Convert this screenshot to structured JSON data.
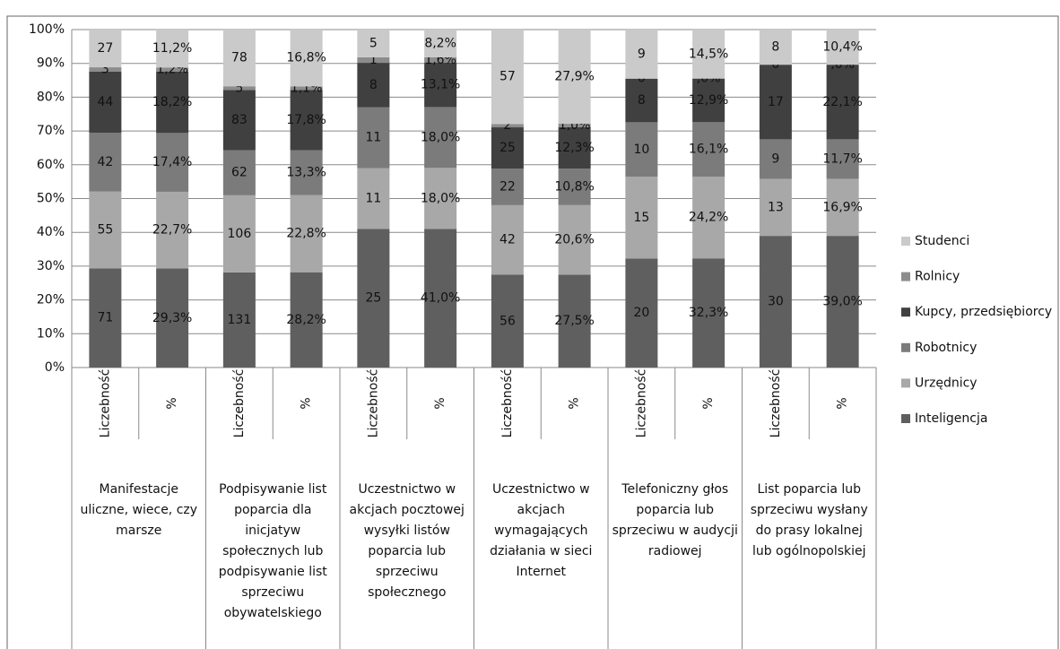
{
  "chart_data": {
    "type": "stacked-percent-bar",
    "categories": [
      "Liczebność",
      "%",
      "Liczebność",
      "%",
      "Liczebność",
      "%",
      "Liczebność",
      "%",
      "Liczebność",
      "%",
      "Liczebność",
      "%"
    ],
    "groups": [
      "Manifestacje uliczne, wiece, czy marsze",
      "Podpisywanie list poparcia dla inicjatyw społecznych lub podpisywanie list sprzeciwu obywatelskiego",
      "Uczestnictwo w akcjach pocztowej wysyłki listów poparcia lub sprzeciwu społecznego",
      "Uczestnictwo w akcjach wymagających działania w sieci Internet",
      "Telefoniczny głos poparcia lub sprzeciwu w audycji radiowej",
      "List poparcia lub sprzeciwu wysłany do prasy lokalnej lub ogólnopolskiej"
    ],
    "ylim": [
      0,
      100
    ],
    "yticks": [
      {
        "value": 0,
        "label": "0%"
      },
      {
        "value": 10,
        "label": "10%"
      },
      {
        "value": 20,
        "label": "20%"
      },
      {
        "value": 30,
        "label": "30%"
      },
      {
        "value": 40,
        "label": "40%"
      },
      {
        "value": 50,
        "label": "50%"
      },
      {
        "value": 60,
        "label": "60%"
      },
      {
        "value": 70,
        "label": "70%"
      },
      {
        "value": 80,
        "label": "80%"
      },
      {
        "value": 90,
        "label": "90%"
      },
      {
        "value": 100,
        "label": "100%"
      }
    ],
    "grid": true,
    "legend": "right",
    "series": [
      {
        "name": "Inteligencja",
        "color": "#5f5f5f",
        "values": [
          71,
          29.3,
          131,
          28.2,
          25,
          41.0,
          56,
          27.5,
          20,
          32.3,
          30,
          39.0
        ],
        "value_labels": [
          "71",
          "29,3%",
          "131",
          "28,2%",
          "25",
          "41,0%",
          "56",
          "27,5%",
          "20",
          "32,3%",
          "30",
          "39,0%"
        ]
      },
      {
        "name": "Urzędnicy",
        "color": "#a8a8a8",
        "values": [
          55,
          22.7,
          106,
          22.8,
          11,
          18.0,
          42,
          20.6,
          15,
          24.2,
          13,
          16.9
        ],
        "value_labels": [
          "55",
          "22,7%",
          "106",
          "22,8%",
          "11",
          "18,0%",
          "42",
          "20,6%",
          "15",
          "24,2%",
          "13",
          "16,9%"
        ]
      },
      {
        "name": "Robotnicy",
        "color": "#7b7b7b",
        "values": [
          42,
          17.4,
          62,
          13.3,
          11,
          18.0,
          22,
          10.8,
          10,
          16.1,
          9,
          11.7
        ],
        "value_labels": [
          "42",
          "17,4%",
          "62",
          "13,3%",
          "11",
          "18,0%",
          "22",
          "10,8%",
          "10",
          "16,1%",
          "9",
          "11,7%"
        ]
      },
      {
        "name": "Kupcy, przedsiębiorcy",
        "color": "#404040",
        "values": [
          44,
          18.2,
          83,
          17.8,
          8,
          13.1,
          25,
          12.3,
          8,
          12.9,
          17,
          22.1
        ],
        "value_labels": [
          "44",
          "18,2%",
          "83",
          "17,8%",
          "8",
          "13,1%",
          "25",
          "12,3%",
          "8",
          "12,9%",
          "17",
          "22,1%"
        ]
      },
      {
        "name": "Rolnicy",
        "color": "#8c8c8c",
        "values": [
          3,
          1.2,
          5,
          1.1,
          1,
          1.6,
          2,
          1.0,
          0,
          0,
          0,
          0
        ],
        "value_labels": [
          "3",
          "1,2%",
          "5",
          "1,1%",
          "1",
          "1,6%",
          "2",
          "1,0%",
          "0",
          ",0%",
          "0",
          ",0%"
        ]
      },
      {
        "name": "Studenci",
        "color": "#cacaca",
        "values": [
          27,
          11.2,
          78,
          16.8,
          5,
          8.2,
          57,
          27.9,
          9,
          14.5,
          8,
          10.4
        ],
        "value_labels": [
          "27",
          "11,2%",
          "78",
          "16,8%",
          "5",
          "8,2%",
          "57",
          "27,9%",
          "9",
          "14,5%",
          "8",
          "10,4%"
        ]
      }
    ]
  }
}
